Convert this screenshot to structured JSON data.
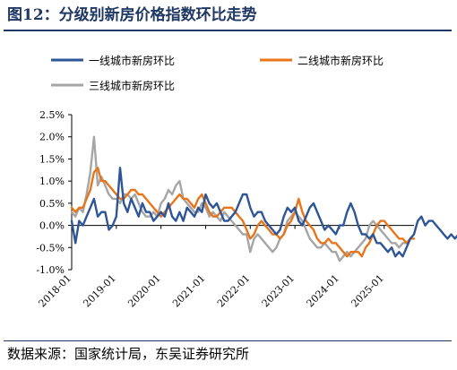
{
  "figure": {
    "title": "图12：分级别新房价格指数环比走势",
    "source": "数据来源：国家统计局，东吴证券研究所"
  },
  "chart_data": {
    "type": "line",
    "title": "",
    "xlabel": "",
    "ylabel": "",
    "ylim": [
      -1.0,
      2.5
    ],
    "y_ticks": [
      2.5,
      2.0,
      1.5,
      1.0,
      0.5,
      0.0,
      -0.5,
      -1.0
    ],
    "y_tick_labels": [
      "2.5%",
      "2.0%",
      "1.5%",
      "1.0%",
      "0.5%",
      "0.0%",
      "-0.5%",
      "-1.0%"
    ],
    "x_ticks": [
      "2018-01",
      "2019-01",
      "2020-01",
      "2021-01",
      "2022-01",
      "2023-01",
      "2024-01",
      "2025-01"
    ],
    "x_start": "2018-01",
    "grid": false,
    "legend_position": "top",
    "series": [
      {
        "name": "一线城市新房环比",
        "color": "#2e5597",
        "values": [
          0.1,
          -0.4,
          0.1,
          0.0,
          0.2,
          0.4,
          0.6,
          0.2,
          0.3,
          0.3,
          -0.1,
          0.0,
          0.2,
          1.3,
          0.5,
          0.3,
          0.6,
          0.4,
          0.2,
          0.5,
          0.3,
          0.3,
          0.1,
          0.2,
          0.3,
          0.2,
          0.5,
          0.2,
          0.1,
          0.3,
          0.1,
          0.4,
          0.3,
          0.2,
          0.4,
          0.3,
          0.7,
          0.5,
          0.4,
          0.5,
          0.3,
          0.1,
          0.1,
          0.2,
          0.3,
          0.5,
          0.7,
          0.7,
          0.4,
          0.2,
          0.3,
          0.3,
          0.1,
          0.0,
          -0.1,
          -0.2,
          -0.1,
          0.2,
          0.4,
          0.3,
          0.4,
          0.1,
          0.0,
          0.2,
          0.4,
          0.5,
          0.3,
          0.1,
          -0.1,
          0.0,
          -0.1,
          -0.2,
          0.0,
          0.0,
          0.3,
          0.5,
          0.3,
          0.0,
          -0.2,
          -0.2,
          -0.3,
          -0.2,
          -0.4,
          -0.4,
          -0.5,
          -0.6,
          -0.5,
          -0.7,
          -0.6,
          -0.7,
          -0.5,
          -0.3,
          -0.2,
          0.1,
          0.2,
          0.0,
          0.1,
          0.1,
          0.0,
          -0.1,
          -0.2,
          -0.3,
          -0.2,
          -0.3,
          -0.2,
          -0.3,
          -0.3,
          -0.3,
          -0.4
        ]
      },
      {
        "name": "二线城市新房环比",
        "color": "#e8751a",
        "values": [
          0.4,
          0.3,
          0.4,
          0.4,
          0.6,
          0.8,
          1.2,
          1.3,
          1.0,
          1.0,
          0.9,
          0.8,
          0.7,
          0.6,
          0.6,
          0.7,
          0.8,
          0.8,
          0.7,
          0.7,
          0.6,
          0.5,
          0.4,
          0.3,
          0.2,
          0.3,
          0.4,
          0.5,
          0.6,
          0.7,
          0.6,
          0.6,
          0.5,
          0.4,
          0.6,
          0.7,
          0.5,
          0.3,
          0.2,
          0.2,
          0.3,
          0.4,
          0.4,
          0.4,
          0.3,
          0.2,
          0.1,
          -0.1,
          -0.3,
          -0.2,
          0.0,
          0.1,
          0.0,
          -0.1,
          -0.2,
          -0.2,
          -0.3,
          -0.2,
          0.0,
          0.1,
          0.3,
          0.6,
          0.3,
          0.1,
          0.0,
          -0.1,
          -0.3,
          -0.4,
          -0.4,
          -0.3,
          -0.4,
          -0.4,
          -0.5,
          -0.6,
          -0.7,
          -0.6,
          -0.6,
          -0.6,
          -0.7,
          -0.5,
          -0.4,
          -0.2,
          0.0,
          0.1,
          0.1,
          0.0,
          -0.1,
          -0.2,
          -0.3,
          -0.3,
          -0.4,
          -0.3,
          -0.3
        ]
      },
      {
        "name": "三线城市新房环比",
        "color": "#a6a6a6",
        "values": [
          0.3,
          0.2,
          0.4,
          0.3,
          0.7,
          1.2,
          2.0,
          0.9,
          1.1,
          0.9,
          0.7,
          0.6,
          0.6,
          0.5,
          0.7,
          0.7,
          0.6,
          0.7,
          0.5,
          0.3,
          0.2,
          0.2,
          0.3,
          0.2,
          0.5,
          0.6,
          0.8,
          0.7,
          0.9,
          1.0,
          0.6,
          0.5,
          0.4,
          0.3,
          0.3,
          0.5,
          0.4,
          0.2,
          0.3,
          0.2,
          0.1,
          0.3,
          0.2,
          0.1,
          0.0,
          -0.1,
          -0.2,
          -0.2,
          -0.6,
          -0.3,
          -0.2,
          -0.3,
          -0.4,
          -0.5,
          -0.6,
          -0.5,
          -0.3,
          -0.2,
          0.1,
          0.2,
          0.3,
          0.2,
          0.1,
          -0.1,
          -0.3,
          -0.4,
          -0.5,
          -0.5,
          -0.4,
          -0.5,
          -0.6,
          -0.6,
          -0.8,
          -0.7,
          -0.6,
          -0.7,
          -0.6,
          -0.5,
          -0.4,
          -0.3,
          0.0,
          0.1,
          0.0,
          -0.1,
          -0.2,
          -0.3,
          -0.4,
          -0.4,
          -0.5,
          -0.4,
          -0.4
        ]
      }
    ]
  }
}
